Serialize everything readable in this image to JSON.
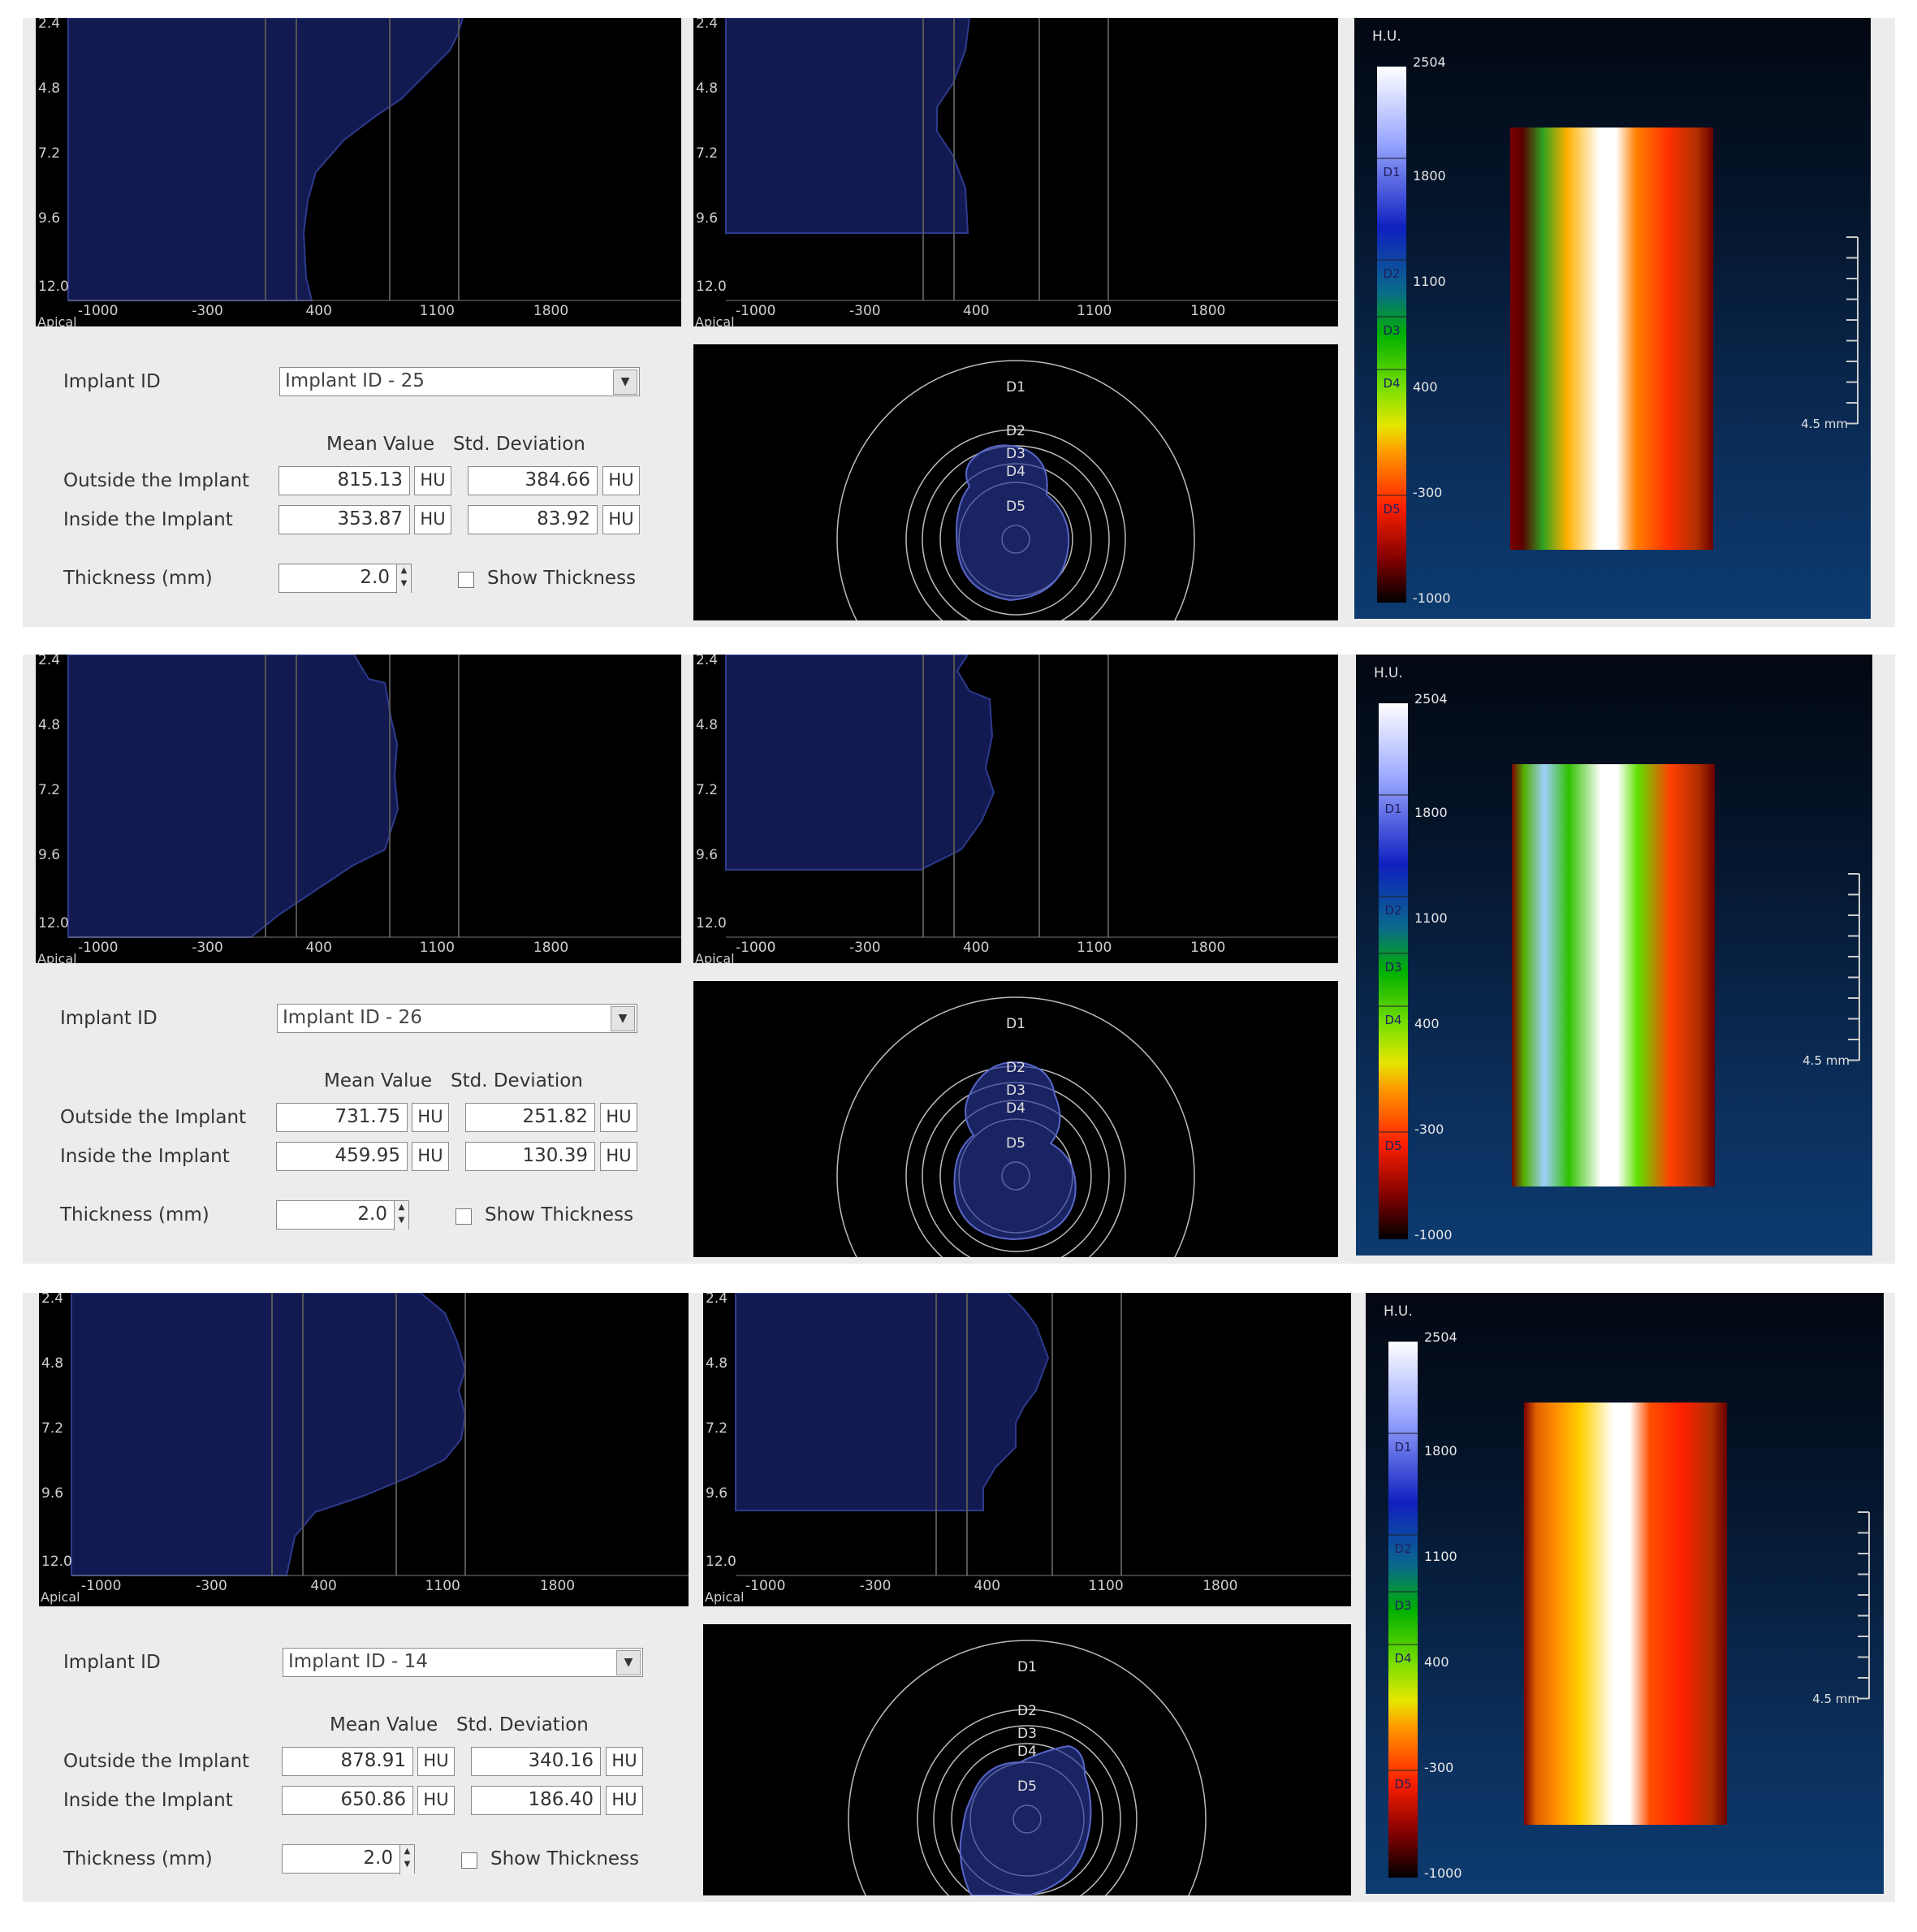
{
  "common": {
    "implant_id_label": "Implant ID",
    "mean_header": "Mean Value",
    "std_header": "Std. Deviation",
    "outside_label": "Outside the Implant",
    "inside_label": "Inside the Implant",
    "thickness_label": "Thickness (mm)",
    "show_thickness_label": "Show Thickness",
    "unit": "HU",
    "hu_title": "H.U.",
    "length_label": "4.5 mm",
    "apical_label": "Apical",
    "dropdown_icon": "chevron-down-icon",
    "spin_up_icon": "triangle-up-icon",
    "spin_down_icon": "triangle-down-icon",
    "y_ticks": [
      "2.4",
      "4.8",
      "7.2",
      "9.6",
      "12.0"
    ],
    "x_ticks": [
      "-1000",
      "-300",
      "400",
      "1100",
      "1800"
    ],
    "scale_values": [
      "2504",
      "1800",
      "1100",
      "400",
      "-300",
      "-1000"
    ],
    "circle_labels": [
      "D1",
      "D2",
      "D3",
      "D4",
      "D5"
    ],
    "colors": {
      "profile_fill": "#131a52",
      "profile_stroke": "#2e3a8c",
      "panel_bg": "#ececec",
      "plot_bg": "#000000"
    }
  },
  "panels": [
    {
      "implant_id": "Implant ID -  25",
      "outside_mean": "815.13",
      "outside_std": "384.66",
      "inside_mean": "353.87",
      "inside_std": "83.92",
      "thickness": "2.0",
      "scale_zone_labels": [
        "D1",
        "D2",
        "D3",
        "D4",
        "D5"
      ]
    },
    {
      "implant_id": "Implant ID -  26",
      "outside_mean": "731.75",
      "outside_std": "251.82",
      "inside_mean": "459.95",
      "inside_std": "130.39",
      "thickness": "2.0",
      "scale_zone_labels": [
        "D1",
        "D2",
        "D3",
        "D4",
        "D5"
      ]
    },
    {
      "implant_id": "Implant ID -  14",
      "outside_mean": "878.91",
      "outside_std": "340.16",
      "inside_mean": "650.86",
      "inside_std": "186.40",
      "thickness": "2.0",
      "scale_zone_labels": [
        "D1",
        "D2",
        "D3",
        "D4",
        "D5"
      ]
    }
  ]
}
